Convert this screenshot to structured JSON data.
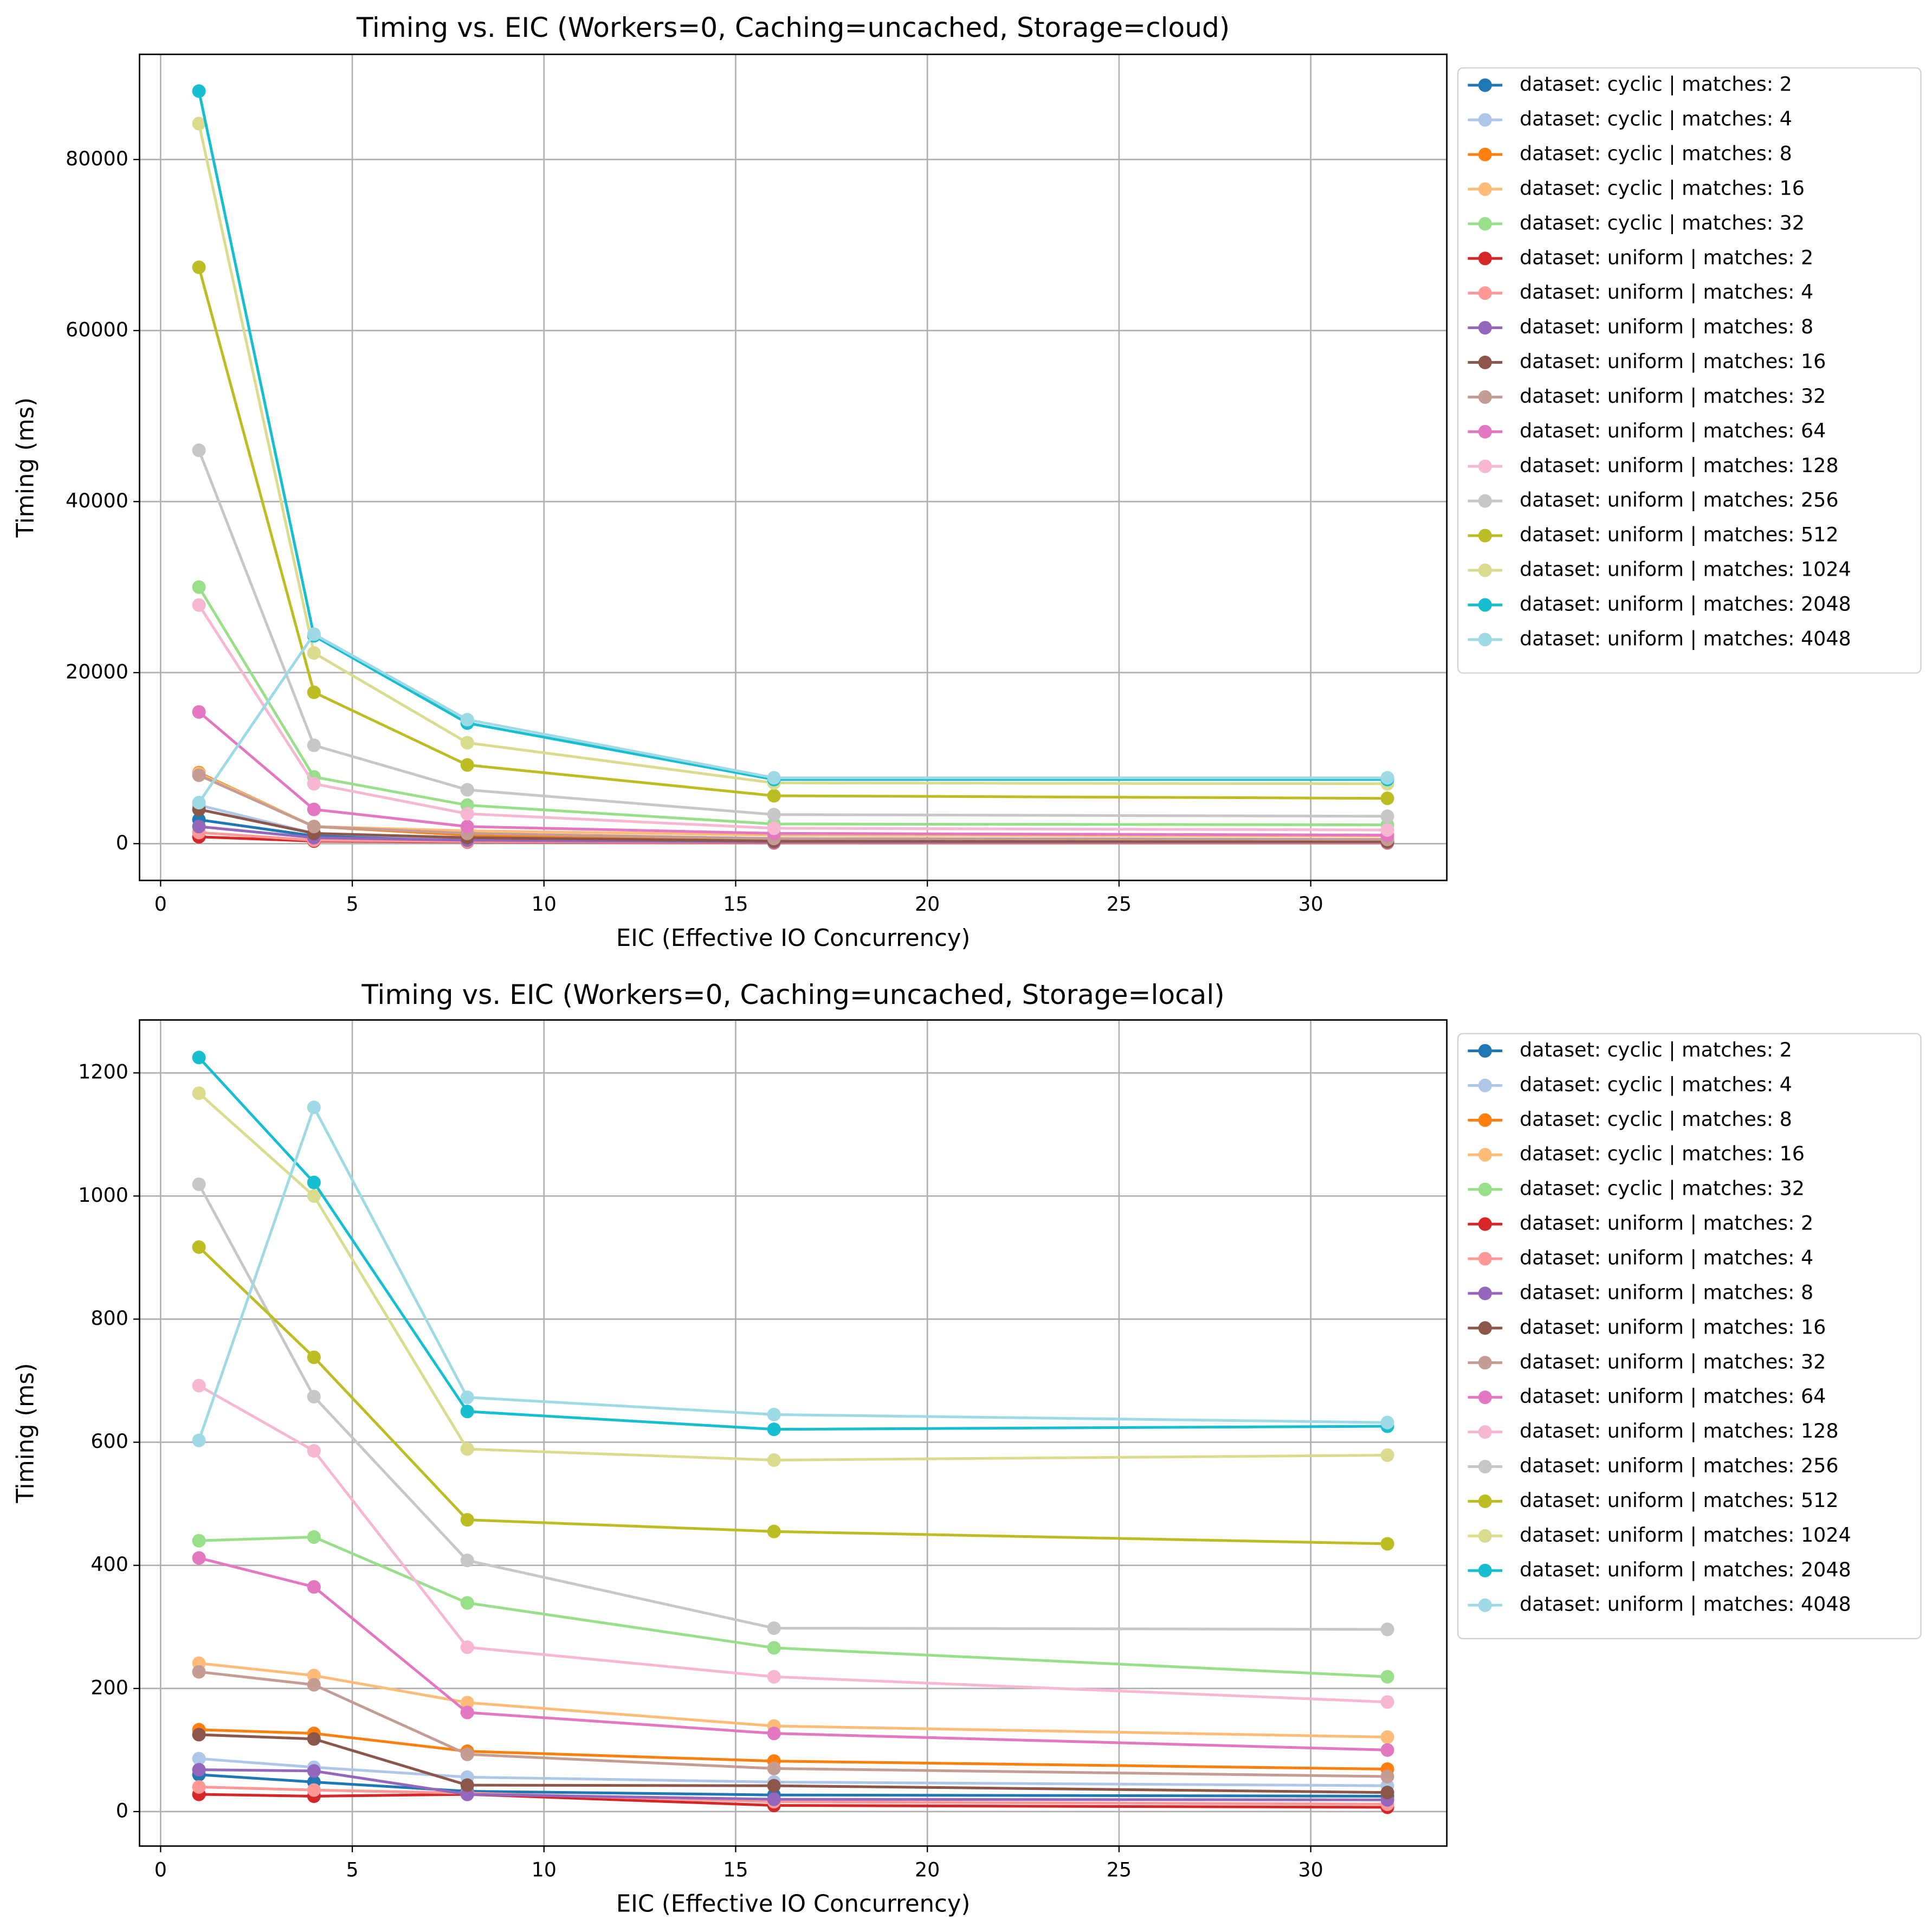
{
  "chart_data": [
    {
      "type": "line",
      "title": "Timing vs. EIC (Workers=0, Caching=uncached, Storage=cloud)",
      "xlabel": "EIC (Effective IO Concurrency)",
      "ylabel": "Timing (ms)",
      "x": [
        1,
        4,
        8,
        16,
        32
      ],
      "xlim": [
        -0.55,
        33.55
      ],
      "xticks": [
        0,
        5,
        10,
        15,
        20,
        25,
        30
      ],
      "ylim": [
        -4300,
        92300
      ],
      "yticks": [
        0,
        20000,
        40000,
        60000,
        80000
      ],
      "grid": true,
      "legend": "outside-right",
      "series": [
        {
          "name": "dataset: cyclic | matches: 2",
          "color": "#1f77b4",
          "values": [
            2800,
            900,
            400,
            200,
            150
          ]
        },
        {
          "name": "dataset: cyclic | matches: 4",
          "color": "#aec7e8",
          "values": [
            4500,
            1200,
            600,
            400,
            300
          ]
        },
        {
          "name": "dataset: cyclic | matches: 8",
          "color": "#ff7f0e",
          "values": [
            8300,
            2000,
            1000,
            600,
            500
          ]
        },
        {
          "name": "dataset: cyclic | matches: 16",
          "color": "#ffbb78",
          "values": [
            8200,
            2000,
            1500,
            1000,
            900
          ]
        },
        {
          "name": "dataset: cyclic | matches: 32",
          "color": "#98df8a",
          "values": [
            30000,
            7800,
            4500,
            2300,
            2200
          ]
        },
        {
          "name": "dataset: uniform | matches: 2",
          "color": "#d62728",
          "values": [
            800,
            300,
            200,
            100,
            100
          ]
        },
        {
          "name": "dataset: uniform | matches: 4",
          "color": "#ff9896",
          "values": [
            1300,
            400,
            250,
            150,
            150
          ]
        },
        {
          "name": "dataset: uniform | matches: 8",
          "color": "#9467bd",
          "values": [
            2000,
            700,
            400,
            200,
            200
          ]
        },
        {
          "name": "dataset: uniform | matches: 16",
          "color": "#8c564b",
          "values": [
            4000,
            1200,
            700,
            300,
            250
          ]
        },
        {
          "name": "dataset: uniform | matches: 32",
          "color": "#c49c94",
          "values": [
            8000,
            2000,
            1200,
            600,
            500
          ]
        },
        {
          "name": "dataset: uniform | matches: 64",
          "color": "#e377c2",
          "values": [
            15400,
            4000,
            2000,
            1200,
            1000
          ]
        },
        {
          "name": "dataset: uniform | matches: 128",
          "color": "#f7b6d2",
          "values": [
            27900,
            7000,
            3500,
            1800,
            1600
          ]
        },
        {
          "name": "dataset: uniform | matches: 256",
          "color": "#c7c7c7",
          "values": [
            46000,
            11500,
            6300,
            3400,
            3200
          ]
        },
        {
          "name": "dataset: uniform | matches: 512",
          "color": "#bcbd22",
          "values": [
            67400,
            17700,
            9200,
            5600,
            5300
          ]
        },
        {
          "name": "dataset: uniform | matches: 1024",
          "color": "#dbdb8d",
          "values": [
            84200,
            22300,
            11800,
            7100,
            7000
          ]
        },
        {
          "name": "dataset: uniform | matches: 2048",
          "color": "#17becf",
          "values": [
            88000,
            24300,
            14100,
            7500,
            7500
          ]
        },
        {
          "name": "dataset: uniform | matches: 4048",
          "color": "#9edae5",
          "values": [
            4800,
            24500,
            14500,
            7700,
            7700
          ]
        }
      ]
    },
    {
      "type": "line",
      "title": "Timing vs. EIC (Workers=0, Caching=uncached, Storage=local)",
      "xlabel": "EIC (Effective IO Concurrency)",
      "ylabel": "Timing (ms)",
      "x": [
        1,
        4,
        8,
        16,
        32
      ],
      "xlim": [
        -0.55,
        33.55
      ],
      "xticks": [
        0,
        5,
        10,
        15,
        20,
        25,
        30
      ],
      "ylim": [
        -56,
        1286
      ],
      "yticks": [
        0,
        200,
        400,
        600,
        800,
        1000,
        1200
      ],
      "grid": true,
      "legend": "outside-right",
      "series": [
        {
          "name": "dataset: cyclic | matches: 2",
          "color": "#1f77b4",
          "values": [
            60,
            48,
            33,
            27,
            25
          ]
        },
        {
          "name": "dataset: cyclic | matches: 4",
          "color": "#aec7e8",
          "values": [
            86,
            72,
            56,
            48,
            42
          ]
        },
        {
          "name": "dataset: cyclic | matches: 8",
          "color": "#ff7f0e",
          "values": [
            133,
            127,
            98,
            82,
            69
          ]
        },
        {
          "name": "dataset: cyclic | matches: 16",
          "color": "#ffbb78",
          "values": [
            241,
            221,
            177,
            139,
            121
          ]
        },
        {
          "name": "dataset: cyclic | matches: 32",
          "color": "#98df8a",
          "values": [
            440,
            446,
            339,
            266,
            219
          ]
        },
        {
          "name": "dataset: uniform | matches: 2",
          "color": "#d62728",
          "values": [
            28,
            25,
            28,
            10,
            7
          ]
        },
        {
          "name": "dataset: uniform | matches: 4",
          "color": "#ff9896",
          "values": [
            40,
            35,
            30,
            16,
            12
          ]
        },
        {
          "name": "dataset: uniform | matches: 8",
          "color": "#9467bd",
          "values": [
            68,
            66,
            28,
            20,
            19
          ]
        },
        {
          "name": "dataset: uniform | matches: 16",
          "color": "#8c564b",
          "values": [
            125,
            118,
            43,
            42,
            31
          ]
        },
        {
          "name": "dataset: uniform | matches: 32",
          "color": "#c49c94",
          "values": [
            227,
            206,
            93,
            70,
            57
          ]
        },
        {
          "name": "dataset: uniform | matches: 64",
          "color": "#e377c2",
          "values": [
            412,
            365,
            161,
            127,
            100
          ]
        },
        {
          "name": "dataset: uniform | matches: 128",
          "color": "#f7b6d2",
          "values": [
            692,
            586,
            267,
            219,
            178
          ]
        },
        {
          "name": "dataset: uniform | matches: 256",
          "color": "#c7c7c7",
          "values": [
            1019,
            674,
            408,
            298,
            296
          ]
        },
        {
          "name": "dataset: uniform | matches: 512",
          "color": "#bcbd22",
          "values": [
            917,
            738,
            474,
            455,
            435
          ]
        },
        {
          "name": "dataset: uniform | matches: 1024",
          "color": "#dbdb8d",
          "values": [
            1167,
            1000,
            589,
            571,
            579
          ]
        },
        {
          "name": "dataset: uniform | matches: 2048",
          "color": "#17becf",
          "values": [
            1225,
            1022,
            650,
            621,
            626
          ]
        },
        {
          "name": "dataset: uniform | matches: 4048",
          "color": "#9edae5",
          "values": [
            603,
            1144,
            673,
            645,
            632
          ]
        }
      ]
    }
  ]
}
